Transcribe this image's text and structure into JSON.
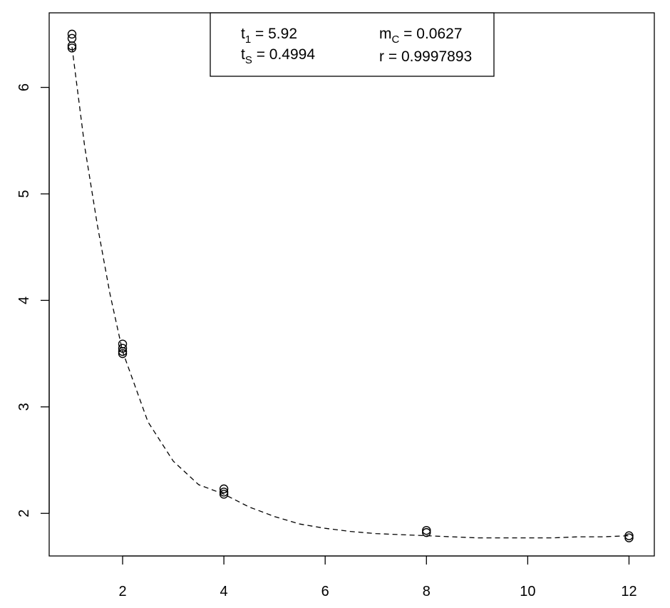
{
  "chart_data": {
    "type": "scatter",
    "title": "",
    "xlabel": "",
    "ylabel": "",
    "xlim": [
      0.55,
      12.5
    ],
    "ylim": [
      1.6,
      6.7
    ],
    "x_ticks": [
      2,
      4,
      6,
      8,
      10,
      12
    ],
    "x_tick_labels": [
      "2",
      "4",
      "6",
      "8",
      "10",
      "12"
    ],
    "y_ticks": [
      2,
      3,
      4,
      5,
      6
    ],
    "y_tick_labels": [
      "2",
      "3",
      "4",
      "5",
      "6"
    ],
    "grid": false,
    "points": [
      {
        "x": 1,
        "y": 6.5
      },
      {
        "x": 1,
        "y": 6.46
      },
      {
        "x": 1,
        "y": 6.39
      },
      {
        "x": 1,
        "y": 6.37
      },
      {
        "x": 2,
        "y": 3.59
      },
      {
        "x": 2,
        "y": 3.55
      },
      {
        "x": 2,
        "y": 3.52
      },
      {
        "x": 2,
        "y": 3.5
      },
      {
        "x": 4,
        "y": 2.23
      },
      {
        "x": 4,
        "y": 2.2
      },
      {
        "x": 4,
        "y": 2.18
      },
      {
        "x": 8,
        "y": 1.84
      },
      {
        "x": 8,
        "y": 1.82
      },
      {
        "x": 12,
        "y": 1.79
      },
      {
        "x": 12,
        "y": 1.77
      }
    ],
    "fit_curve": {
      "style": "dashed",
      "x": [
        1.0,
        1.25,
        1.5,
        1.75,
        2.0,
        2.5,
        3.0,
        3.5,
        4.0,
        4.5,
        5.0,
        5.5,
        6.0,
        6.5,
        7.0,
        7.5,
        8.0,
        8.5,
        9.0,
        9.5,
        10.0,
        10.5,
        11.0,
        11.5,
        12.0
      ],
      "y": [
        6.38,
        5.45,
        4.71,
        4.06,
        3.52,
        2.86,
        2.49,
        2.27,
        2.18,
        2.06,
        1.97,
        1.9,
        1.86,
        1.83,
        1.81,
        1.8,
        1.79,
        1.78,
        1.77,
        1.77,
        1.77,
        1.77,
        1.78,
        1.78,
        1.79
      ]
    },
    "legend": {
      "position": "top-center",
      "entries": [
        {
          "name": "t",
          "sub": "1",
          "value": "5.92"
        },
        {
          "name": "m",
          "sub": "C",
          "value": "0.0627"
        },
        {
          "name": "t",
          "sub": "S",
          "value": "0.4994"
        },
        {
          "name": "r",
          "sub": "",
          "value": "0.9997893"
        }
      ]
    }
  },
  "colors": {
    "points": "#000000",
    "curve": "#000000",
    "frame": "#000000",
    "background": "#ffffff"
  }
}
